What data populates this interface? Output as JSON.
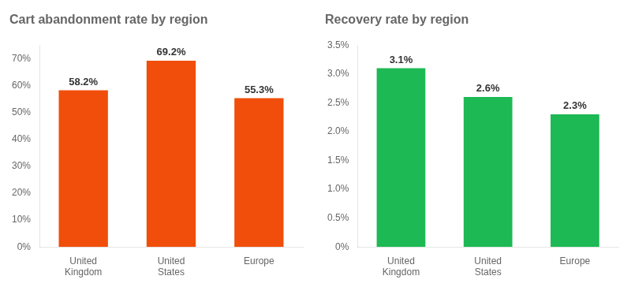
{
  "chart_data": [
    {
      "type": "bar",
      "title": "Cart abandonment rate by region",
      "categories": [
        "United\nKingdom",
        "United\nStates",
        "Europe"
      ],
      "values": [
        0.582,
        0.692,
        0.553
      ],
      "value_labels": [
        "58.2%",
        "69.2%",
        "55.3%"
      ],
      "color": "#F04E0A",
      "ylim": [
        0,
        0.75
      ],
      "yticks": [
        {
          "value": 0,
          "label": "0%"
        },
        {
          "value": 0.1,
          "label": "10%"
        },
        {
          "value": 0.2,
          "label": "20%"
        },
        {
          "value": 0.3,
          "label": "30%"
        },
        {
          "value": 0.4,
          "label": "40%"
        },
        {
          "value": 0.5,
          "label": "50%"
        },
        {
          "value": 0.6,
          "label": "60%"
        },
        {
          "value": 0.7,
          "label": "70%"
        }
      ],
      "grid": false,
      "data_labels": true
    },
    {
      "type": "bar",
      "title": "Recovery rate by region",
      "categories": [
        "United\nKingdom",
        "United\nStates",
        "Europe"
      ],
      "values": [
        0.031,
        0.026,
        0.023
      ],
      "value_labels": [
        "3.1%",
        "2.6%",
        "2.3%"
      ],
      "color": "#1DB954",
      "ylim": [
        0,
        0.035
      ],
      "yticks": [
        {
          "value": 0,
          "label": "0%"
        },
        {
          "value": 0.005,
          "label": "0.5%"
        },
        {
          "value": 0.01,
          "label": "1.0%"
        },
        {
          "value": 0.015,
          "label": "1.5%"
        },
        {
          "value": 0.02,
          "label": "2.0%"
        },
        {
          "value": 0.025,
          "label": "2.5%"
        },
        {
          "value": 0.03,
          "label": "3.0%"
        },
        {
          "value": 0.035,
          "label": "3.5%"
        }
      ],
      "grid": false,
      "data_labels": true
    }
  ]
}
